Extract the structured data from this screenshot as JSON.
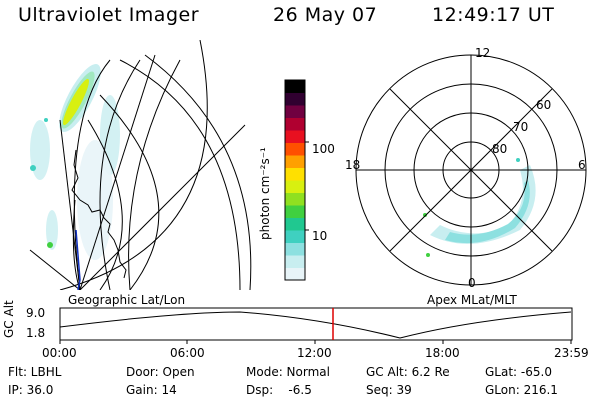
{
  "header": {
    "instrument": "Ultraviolet Imager",
    "date": "26 May 07",
    "time": "12:49:17 UT"
  },
  "colorbar": {
    "unit_label": "photon cm⁻²s⁻¹",
    "ticks": [
      "100",
      "10"
    ],
    "colors": [
      "#e8f4f8",
      "#c8eef0",
      "#8de0e0",
      "#3fd0c0",
      "#20c890",
      "#40d040",
      "#90e020",
      "#d8f010",
      "#ffe000",
      "#ffa000",
      "#ff5000",
      "#e81020",
      "#b00030",
      "#700040",
      "#300030",
      "#000000"
    ]
  },
  "left_panel": {
    "caption": "Geographic Lat/Lon"
  },
  "right_panel": {
    "caption": "Apex MLat/MLT",
    "mlt_labels": {
      "top": "12",
      "left": "18",
      "right": "6",
      "bottom": "0"
    },
    "lat_labels": [
      "60",
      "70",
      "80"
    ]
  },
  "timeline": {
    "ylabel": "GC Alt",
    "y_ticks": [
      "9.0",
      "1.8"
    ],
    "x_ticks": [
      "00:00",
      "06:00",
      "12:00",
      "18:00",
      "23:59"
    ],
    "current_marker_color": "#dd0000"
  },
  "info": {
    "flt": "Flt: LBHL",
    "ip": "IP: 36.0",
    "door": "Door: Open",
    "gain": "Gain: 14",
    "mode": "Mode: Normal",
    "dsp": "Dsp:    -6.5",
    "gc_alt": "GC Alt: 6.2 Re",
    "seq": "Seq: 39",
    "glat": "GLat: -65.0",
    "glon": "GLon: 216.1"
  }
}
